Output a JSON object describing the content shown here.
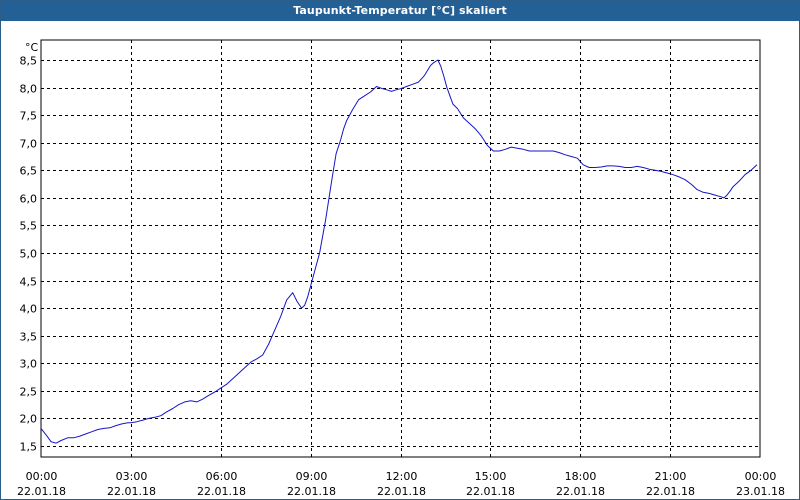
{
  "window": {
    "title": "Taupunkt-Temperatur [°C] skaliert"
  },
  "colors": {
    "titlebar": "#236096",
    "series_line": "#1515c8",
    "grid": "#000000",
    "background": "#ffffff"
  },
  "chart_data": {
    "type": "line",
    "title": "Taupunkt-Temperatur [°C] skaliert",
    "ylabel": "°C",
    "xlabel": "",
    "ylim": [
      1.2,
      8.8
    ],
    "xlim": [
      0,
      24
    ],
    "grid": true,
    "grid_style": "dashed",
    "y_ticks": [
      "1,5",
      "2,0",
      "2,5",
      "3,0",
      "3,5",
      "4,0",
      "4,5",
      "5,0",
      "5,5",
      "6,0",
      "6,5",
      "7,0",
      "7,5",
      "8,0",
      "8,5"
    ],
    "y_tick_values": [
      1.5,
      2.0,
      2.5,
      3.0,
      3.5,
      4.0,
      4.5,
      5.0,
      5.5,
      6.0,
      6.5,
      7.0,
      7.5,
      8.0,
      8.5
    ],
    "x_ticks": [
      {
        "time": "00:00",
        "date": "22.01.18",
        "hour": 0
      },
      {
        "time": "03:00",
        "date": "22.01.18",
        "hour": 3
      },
      {
        "time": "06:00",
        "date": "22.01.18",
        "hour": 6
      },
      {
        "time": "09:00",
        "date": "22.01.18",
        "hour": 9
      },
      {
        "time": "12:00",
        "date": "22.01.18",
        "hour": 12
      },
      {
        "time": "15:00",
        "date": "22.01.18",
        "hour": 15
      },
      {
        "time": "18:00",
        "date": "22.01.18",
        "hour": 18
      },
      {
        "time": "21:00",
        "date": "22.01.18",
        "hour": 21
      },
      {
        "time": "00:00",
        "date": "23.01.18",
        "hour": 24
      }
    ],
    "x_unit": "hours since 22.01.18 00:00",
    "series": [
      {
        "name": "",
        "x": [
          0.0,
          0.2,
          0.33,
          0.5,
          0.67,
          0.9,
          1.1,
          1.3,
          1.5,
          1.7,
          1.9,
          2.1,
          2.3,
          2.5,
          2.7,
          2.9,
          3.0,
          3.2,
          3.4,
          3.6,
          3.8,
          4.0,
          4.2,
          4.4,
          4.6,
          4.8,
          5.0,
          5.2,
          5.4,
          5.6,
          5.8,
          6.0,
          6.2,
          6.4,
          6.6,
          6.8,
          7.0,
          7.2,
          7.4,
          7.6,
          7.8,
          8.0,
          8.2,
          8.4,
          8.55,
          8.7,
          8.8,
          8.9,
          9.0,
          9.15,
          9.3,
          9.5,
          9.7,
          9.85,
          10.0,
          10.1,
          10.2,
          10.4,
          10.6,
          10.8,
          11.0,
          11.2,
          11.4,
          11.6,
          11.7,
          11.8,
          12.0,
          12.2,
          12.4,
          12.6,
          12.8,
          13.0,
          13.1,
          13.25,
          13.35,
          13.45,
          13.55,
          13.65,
          13.75,
          13.9,
          14.1,
          14.3,
          14.5,
          14.7,
          14.9,
          15.1,
          15.3,
          15.5,
          15.7,
          15.9,
          16.1,
          16.3,
          16.5,
          16.7,
          16.9,
          17.1,
          17.3,
          17.5,
          17.7,
          17.9,
          18.1,
          18.3,
          18.5,
          18.7,
          18.9,
          19.1,
          19.3,
          19.5,
          19.7,
          19.9,
          20.1,
          20.3,
          20.5,
          20.7,
          20.9,
          21.1,
          21.3,
          21.5,
          21.7,
          21.9,
          22.1,
          22.3,
          22.5,
          22.7,
          22.8,
          22.9,
          23.0,
          23.1,
          23.3,
          23.5,
          23.7,
          23.9
        ],
        "values": [
          1.82,
          1.68,
          1.58,
          1.55,
          1.6,
          1.65,
          1.65,
          1.68,
          1.72,
          1.76,
          1.8,
          1.82,
          1.83,
          1.87,
          1.9,
          1.92,
          1.92,
          1.94,
          1.97,
          2.0,
          2.02,
          2.05,
          2.12,
          2.18,
          2.25,
          2.3,
          2.32,
          2.3,
          2.35,
          2.42,
          2.48,
          2.55,
          2.62,
          2.72,
          2.82,
          2.92,
          3.02,
          3.08,
          3.15,
          3.35,
          3.6,
          3.85,
          4.15,
          4.28,
          4.12,
          4.0,
          4.05,
          4.2,
          4.4,
          4.7,
          5.0,
          5.6,
          6.3,
          6.8,
          7.05,
          7.25,
          7.4,
          7.6,
          7.78,
          7.85,
          7.92,
          8.02,
          7.98,
          7.95,
          7.93,
          7.95,
          7.98,
          8.02,
          8.06,
          8.1,
          8.22,
          8.4,
          8.45,
          8.5,
          8.38,
          8.2,
          8.0,
          7.85,
          7.7,
          7.62,
          7.45,
          7.35,
          7.25,
          7.12,
          6.95,
          6.85,
          6.85,
          6.88,
          6.92,
          6.9,
          6.88,
          6.85,
          6.85,
          6.85,
          6.85,
          6.85,
          6.82,
          6.78,
          6.75,
          6.72,
          6.6,
          6.55,
          6.55,
          6.56,
          6.58,
          6.58,
          6.57,
          6.55,
          6.55,
          6.57,
          6.55,
          6.52,
          6.5,
          6.48,
          6.45,
          6.42,
          6.38,
          6.33,
          6.25,
          6.15,
          6.1,
          6.08,
          6.05,
          6.02,
          6.0,
          6.05,
          6.12,
          6.2,
          6.3,
          6.42,
          6.5,
          6.6
        ]
      }
    ]
  }
}
